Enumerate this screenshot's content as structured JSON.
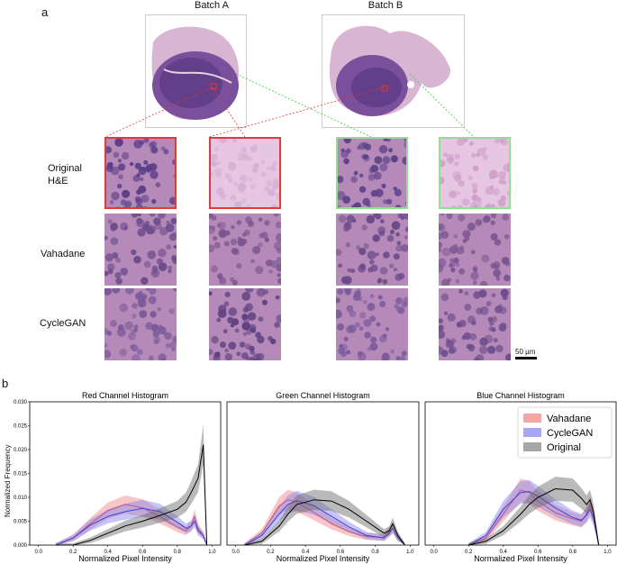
{
  "panel_a": {
    "letter": "a",
    "batches": [
      "Batch A",
      "Batch B"
    ],
    "rows": [
      {
        "line1": "Original",
        "line2": "H&E"
      },
      {
        "line1": "Vahadane",
        "line2": ""
      },
      {
        "line1": "CycleGAN",
        "line2": ""
      }
    ],
    "scale_bar": "50 µm",
    "colors": {
      "red_box": "#e53935",
      "green_box": "#8ee08e",
      "tissue_dark": "#4a2d6e",
      "tissue_light": "#c89ac2"
    }
  },
  "panel_b": {
    "letter": "b",
    "ylabel": "Normalized Frequency",
    "legend": [
      "Vahadane",
      "CycleGAN",
      "Original"
    ],
    "legend_colors": [
      "#f08080",
      "#8080f0",
      "#808080"
    ]
  },
  "chart_data": [
    {
      "type": "line",
      "title": "Red Channel Histogram",
      "xlabel": "Normalized Pixel Intensity",
      "ylabel": "Normalized Frequency",
      "xlim": [
        -0.05,
        1.05
      ],
      "ylim": [
        0,
        0.03
      ],
      "xticks": [
        "0.0",
        "0.2",
        "0.4",
        "0.6",
        "0.8",
        "1.0"
      ],
      "yticks": [
        "0.000",
        "0.005",
        "0.010",
        "0.015",
        "0.020",
        "0.025",
        "0.030"
      ],
      "x": [
        0.1,
        0.2,
        0.3,
        0.4,
        0.5,
        0.6,
        0.7,
        0.8,
        0.85,
        0.88,
        0.9,
        0.92,
        0.95,
        0.97
      ],
      "series": [
        {
          "name": "Vahadane",
          "color": "#e53935",
          "values": [
            0.0,
            0.0015,
            0.0045,
            0.0072,
            0.0085,
            0.0078,
            0.006,
            0.0038,
            0.003,
            0.004,
            0.006,
            0.0035,
            0.002,
            0.0
          ]
        },
        {
          "name": "CycleGAN",
          "color": "#3f3fe0",
          "values": [
            0.0,
            0.0015,
            0.0042,
            0.006,
            0.007,
            0.0077,
            0.007,
            0.0048,
            0.0035,
            0.004,
            0.005,
            0.003,
            0.002,
            0.0
          ]
        },
        {
          "name": "Original",
          "color": "#000000",
          "values": [
            0.0,
            0.0,
            0.001,
            0.0025,
            0.004,
            0.005,
            0.0062,
            0.0075,
            0.009,
            0.011,
            0.0125,
            0.014,
            0.021,
            0.0
          ]
        }
      ]
    },
    {
      "type": "line",
      "title": "Green Channel Histogram",
      "xlabel": "Normalized Pixel Intensity",
      "xlim": [
        -0.05,
        1.05
      ],
      "ylim": [
        0,
        0.03
      ],
      "xticks": [
        "0.0",
        "0.2",
        "0.4",
        "0.6",
        "0.8",
        "1.0"
      ],
      "x": [
        0.05,
        0.15,
        0.25,
        0.3,
        0.35,
        0.45,
        0.55,
        0.65,
        0.75,
        0.85,
        0.88,
        0.9,
        0.93,
        0.97
      ],
      "series": [
        {
          "name": "Vahadane",
          "color": "#e53935",
          "values": [
            0.0,
            0.0025,
            0.0082,
            0.0095,
            0.009,
            0.0068,
            0.0045,
            0.0028,
            0.0018,
            0.0016,
            0.0028,
            0.0035,
            0.0015,
            0.0
          ]
        },
        {
          "name": "CycleGAN",
          "color": "#3f3fe0",
          "values": [
            0.0,
            0.002,
            0.0065,
            0.0085,
            0.0093,
            0.0082,
            0.006,
            0.0038,
            0.002,
            0.0015,
            0.0025,
            0.0035,
            0.0015,
            0.0
          ]
        },
        {
          "name": "Original",
          "color": "#000000",
          "values": [
            0.0,
            0.0008,
            0.004,
            0.0065,
            0.0085,
            0.0095,
            0.0092,
            0.0075,
            0.005,
            0.0025,
            0.003,
            0.0045,
            0.002,
            0.0
          ]
        }
      ]
    },
    {
      "type": "line",
      "title": "Blue Channel Histogram",
      "xlabel": "Normalized Pixel Intensity",
      "xlim": [
        -0.05,
        1.05
      ],
      "ylim": [
        0,
        0.03
      ],
      "xticks": [
        "0.0",
        "0.2",
        "0.4",
        "0.6",
        "0.8",
        "1.0"
      ],
      "x": [
        0.2,
        0.3,
        0.4,
        0.5,
        0.55,
        0.6,
        0.7,
        0.8,
        0.85,
        0.88,
        0.9,
        0.92,
        0.95
      ],
      "series": [
        {
          "name": "Vahadane",
          "color": "#e53935",
          "values": [
            0.0,
            0.0015,
            0.0065,
            0.0115,
            0.011,
            0.0092,
            0.0068,
            0.0055,
            0.005,
            0.0065,
            0.0085,
            0.006,
            0.0
          ]
        },
        {
          "name": "CycleGAN",
          "color": "#3f3fe0",
          "values": [
            0.0,
            0.002,
            0.0075,
            0.011,
            0.0112,
            0.0102,
            0.0078,
            0.0058,
            0.0052,
            0.0062,
            0.0075,
            0.0055,
            0.0
          ]
        },
        {
          "name": "Original",
          "color": "#000000",
          "values": [
            0.0,
            0.0008,
            0.003,
            0.0065,
            0.0085,
            0.01,
            0.0118,
            0.0115,
            0.0098,
            0.0085,
            0.0095,
            0.007,
            0.0
          ]
        }
      ]
    }
  ]
}
